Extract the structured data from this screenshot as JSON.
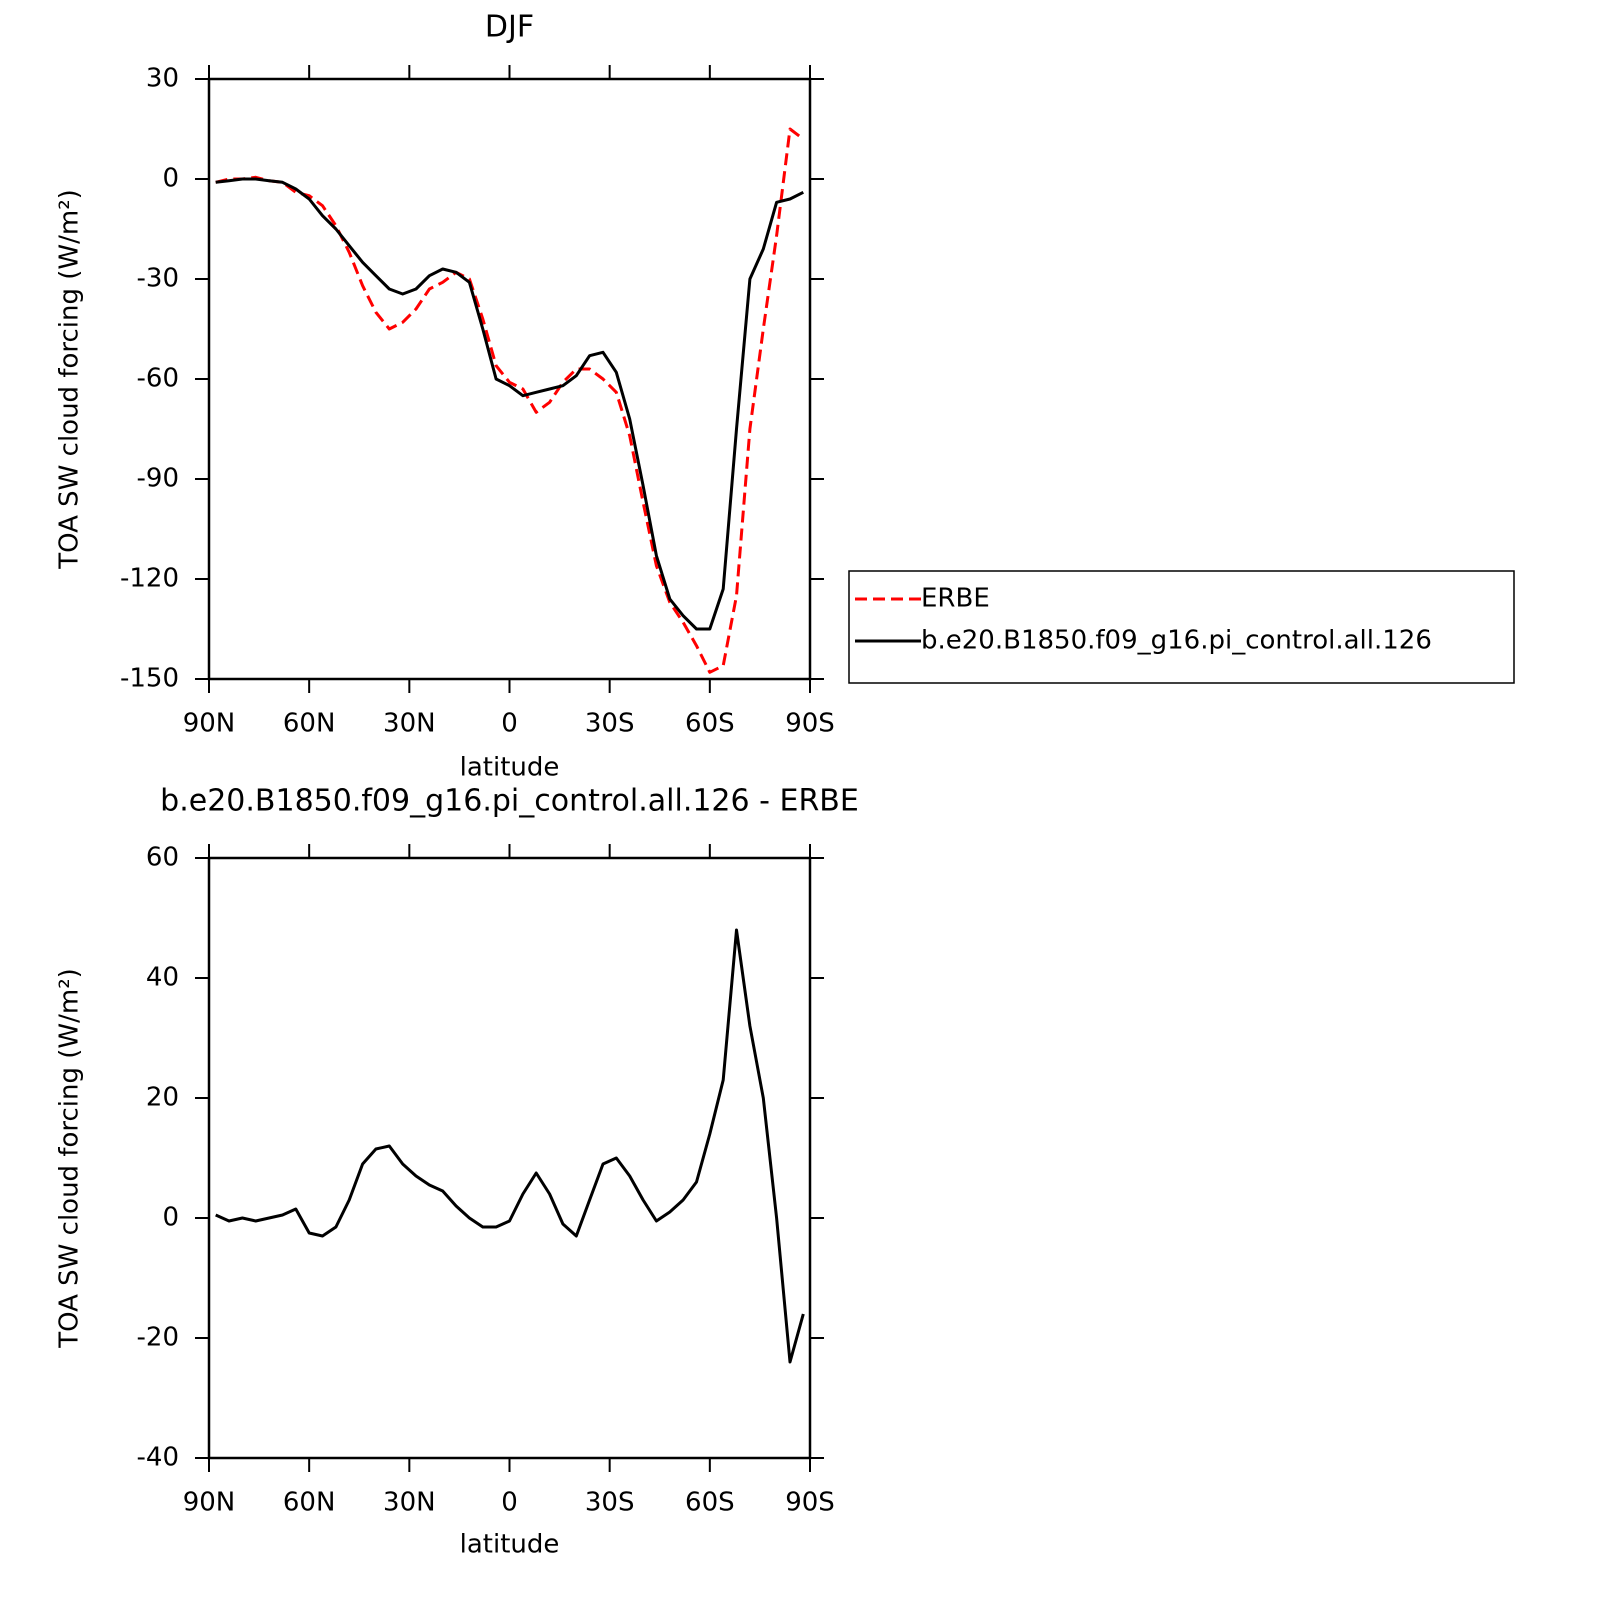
{
  "chart_data": [
    {
      "type": "line",
      "title": "DJF",
      "xlabel": "latitude",
      "ylabel": "TOA SW cloud forcing (W/m²)",
      "x": [
        88,
        84,
        80,
        76,
        72,
        68,
        64,
        60,
        56,
        52,
        48,
        44,
        40,
        36,
        32,
        28,
        24,
        20,
        16,
        12,
        8,
        4,
        0,
        -4,
        -8,
        -12,
        -16,
        -20,
        -24,
        -28,
        -32,
        -36,
        -40,
        -44,
        -48,
        -52,
        -56,
        -60,
        -64,
        -68,
        -72,
        -76,
        -80,
        -84,
        -88
      ],
      "series": [
        {
          "name": "ERBE",
          "color": "#ff0000",
          "dashed": true,
          "values": [
            -1,
            0,
            0,
            0.5,
            -0.5,
            -1,
            -4,
            -5,
            -8,
            -14,
            -22,
            -32,
            -40,
            -45,
            -43,
            -39,
            -33,
            -31,
            -28,
            -30,
            -42,
            -56,
            -61,
            -63,
            -70,
            -67,
            -61,
            -57,
            -57,
            -60,
            -64,
            -77,
            -97,
            -116,
            -127,
            -133,
            -140,
            -148,
            -146,
            -125,
            -75,
            -45,
            -17,
            15,
            12
          ]
        },
        {
          "name": "b.e20.B1850.f09_g16.pi_control.all.126",
          "color": "#000000",
          "dashed": false,
          "values": [
            -1,
            -0.5,
            0,
            0,
            -0.5,
            -1,
            -3,
            -6,
            -11,
            -15,
            -20,
            -25,
            -29,
            -33,
            -34.5,
            -33,
            -29,
            -27,
            -28,
            -31,
            -45,
            -60,
            -62,
            -65,
            -64,
            -63,
            -62,
            -59,
            -53,
            -52,
            -58,
            -72,
            -92,
            -113,
            -126,
            -131,
            -135,
            -135,
            -123,
            -75,
            -30,
            -21,
            -7,
            -6,
            -4
          ]
        }
      ],
      "xlim": [
        90,
        -90
      ],
      "xticks": [
        {
          "value": 90,
          "label": "90N"
        },
        {
          "value": 60,
          "label": "60N"
        },
        {
          "value": 30,
          "label": "30N"
        },
        0,
        {
          "value": -30,
          "label": "30S"
        },
        {
          "value": -60,
          "label": "60S"
        },
        {
          "value": -90,
          "label": "90S"
        }
      ],
      "ylim": [
        -150,
        30
      ],
      "yticks": [
        -150,
        -120,
        -90,
        -60,
        -30,
        0,
        30
      ],
      "legend": "right"
    },
    {
      "type": "line",
      "title": "b.e20.B1850.f09_g16.pi_control.all.126 - ERBE",
      "xlabel": "latitude",
      "ylabel": "TOA SW cloud forcing (W/m²)",
      "x": [
        88,
        84,
        80,
        76,
        72,
        68,
        64,
        60,
        56,
        52,
        48,
        44,
        40,
        36,
        32,
        28,
        24,
        20,
        16,
        12,
        8,
        4,
        0,
        -4,
        -8,
        -12,
        -16,
        -20,
        -24,
        -28,
        -32,
        -36,
        -40,
        -44,
        -48,
        -52,
        -56,
        -60,
        -64,
        -68,
        -72,
        -76,
        -80,
        -84,
        -88
      ],
      "values": [
        0.5,
        -0.5,
        0,
        -0.5,
        0,
        0.5,
        1.5,
        -2.5,
        -3,
        -1.5,
        3,
        9,
        11.5,
        12,
        9,
        7,
        5.5,
        4.5,
        2,
        0,
        -1.5,
        -1.5,
        -0.5,
        4,
        7.5,
        4,
        -1,
        -3,
        3,
        9,
        10,
        7,
        3,
        -0.5,
        1,
        3,
        6,
        14,
        23,
        48,
        32,
        20,
        0,
        -24,
        -16
      ],
      "color": "#000000",
      "xlim": [
        90,
        -90
      ],
      "xticks": [
        {
          "value": 90,
          "label": "90N"
        },
        {
          "value": 60,
          "label": "60N"
        },
        {
          "value": 30,
          "label": "30N"
        },
        0,
        {
          "value": -30,
          "label": "30S"
        },
        {
          "value": -60,
          "label": "60S"
        },
        {
          "value": -90,
          "label": "90S"
        }
      ],
      "ylim": [
        -40,
        60
      ],
      "yticks": [
        -40,
        -20,
        0,
        20,
        40,
        60
      ]
    }
  ]
}
